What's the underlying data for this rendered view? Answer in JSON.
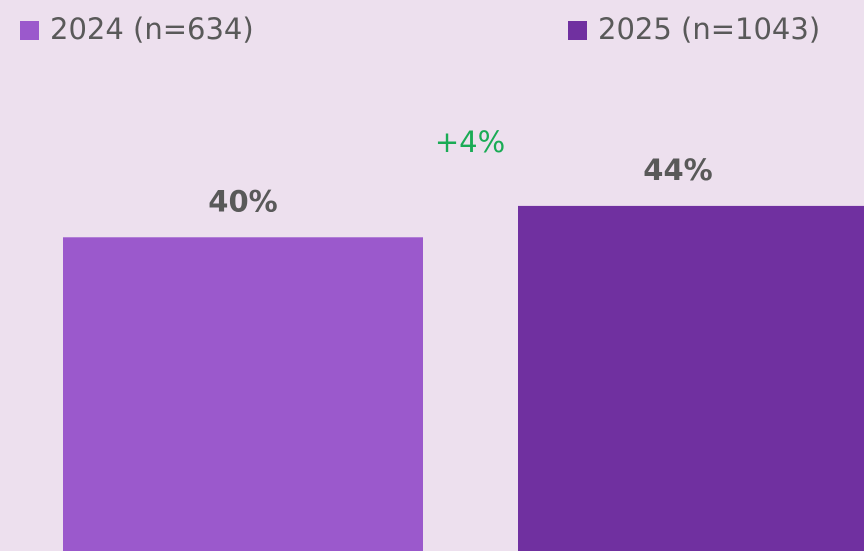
{
  "chart_data": {
    "type": "bar",
    "categories": [
      null
    ],
    "series": [
      {
        "name": "2024 (n=634)",
        "color": "#9b59cc",
        "values": [
          40
        ],
        "value_labels": [
          "40%"
        ]
      },
      {
        "name": "2025 (n=1043)",
        "color": "#7030a0",
        "values": [
          44
        ],
        "value_labels": [
          "44%"
        ]
      }
    ],
    "annotation": "+4%",
    "annotation_color": "#1aab55",
    "ylim": [
      0,
      70
    ]
  }
}
